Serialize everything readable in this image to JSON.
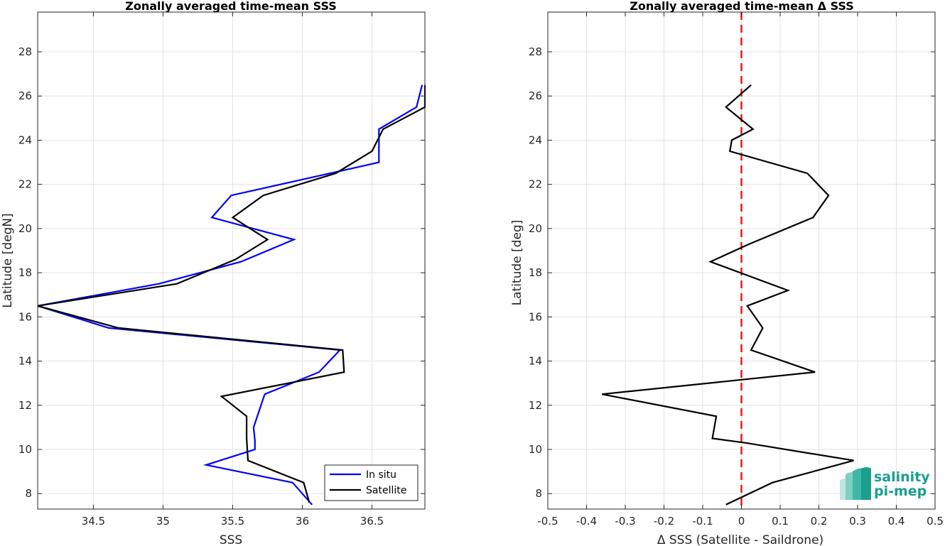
{
  "chart_data": [
    {
      "type": "line",
      "title": "Zonally averaged time-mean SSS",
      "xlabel": "SSS",
      "ylabel": "Latitude [degN]",
      "xlim": [
        34.1,
        36.88
      ],
      "ylim": [
        7.3,
        29.8
      ],
      "xticks": [
        34.5,
        35,
        35.5,
        36,
        36.5
      ],
      "xtick_labels": [
        "34.5",
        "35",
        "35.5",
        "36",
        "36.5"
      ],
      "yticks": [
        8,
        10,
        12,
        14,
        16,
        18,
        20,
        22,
        24,
        26,
        28
      ],
      "ytick_labels": [
        "8",
        "10",
        "12",
        "14",
        "16",
        "18",
        "20",
        "22",
        "24",
        "26",
        "28"
      ],
      "grid": true,
      "legend": "bottom-right",
      "series": [
        {
          "name": "In situ",
          "color": "#0000ff",
          "points": [
            [
              36.07,
              7.5
            ],
            [
              35.93,
              8.5
            ],
            [
              35.31,
              9.3
            ],
            [
              35.66,
              10
            ],
            [
              35.66,
              10.4
            ],
            [
              35.65,
              11
            ],
            [
              35.73,
              12.5
            ],
            [
              36.12,
              13.5
            ],
            [
              36.27,
              14.5
            ],
            [
              34.61,
              15.5
            ],
            [
              34.1,
              16.5
            ],
            [
              34.97,
              17.5
            ],
            [
              35.56,
              18.5
            ],
            [
              35.94,
              19.5
            ],
            [
              35.35,
              20.5
            ],
            [
              35.49,
              21.5
            ],
            [
              36.2,
              22.5
            ],
            [
              36.55,
              23
            ],
            [
              36.55,
              23.5
            ],
            [
              36.55,
              24.5
            ],
            [
              36.82,
              25.5
            ],
            [
              36.86,
              26.5
            ]
          ]
        },
        {
          "name": "Satellite",
          "color": "#000000",
          "points": [
            [
              36.05,
              7.6
            ],
            [
              36.01,
              8.5
            ],
            [
              35.61,
              9.5
            ],
            [
              35.6,
              10.5
            ],
            [
              35.6,
              11.5
            ],
            [
              35.42,
              12.4
            ],
            [
              36.3,
              13.5
            ],
            [
              36.29,
              14.5
            ],
            [
              34.68,
              15.5
            ],
            [
              34.1,
              16.5
            ],
            [
              35.1,
              17.5
            ],
            [
              35.52,
              18.6
            ],
            [
              35.75,
              19.5
            ],
            [
              35.5,
              20.5
            ],
            [
              35.72,
              21.5
            ],
            [
              36.24,
              22.5
            ],
            [
              36.5,
              23.5
            ],
            [
              36.58,
              24.5
            ],
            [
              36.88,
              25.5
            ],
            [
              36.88,
              26.5
            ]
          ]
        }
      ]
    },
    {
      "type": "line",
      "title": "Zonally averaged time-mean Δ SSS",
      "xlabel": "Δ SSS (Satellite - Saildrone)",
      "ylabel": "Latitude [deg]",
      "xlim": [
        -0.5,
        0.5
      ],
      "ylim": [
        7.3,
        29.8
      ],
      "xticks": [
        -0.5,
        -0.4,
        -0.3,
        -0.2,
        -0.1,
        0,
        0.1,
        0.2,
        0.3,
        0.4,
        0.5
      ],
      "xtick_labels": [
        "-0.5",
        "-0.4",
        "-0.3",
        "-0.2",
        "-0.1",
        "0",
        "0.1",
        "0.2",
        "0.3",
        "0.4",
        "0.5"
      ],
      "yticks": [
        8,
        10,
        12,
        14,
        16,
        18,
        20,
        22,
        24,
        26,
        28
      ],
      "ytick_labels": [
        "8",
        "10",
        "12",
        "14",
        "16",
        "18",
        "20",
        "22",
        "24",
        "26",
        "28"
      ],
      "grid": true,
      "reference_line": {
        "x": 0,
        "color": "#e8191b",
        "style": "dashed"
      },
      "series": [
        {
          "color": "#000000",
          "points": [
            [
              -0.04,
              7.5
            ],
            [
              0.08,
              8.5
            ],
            [
              0.29,
              9.5
            ],
            [
              0.01,
              10.3
            ],
            [
              -0.075,
              10.5
            ],
            [
              -0.065,
              11.5
            ],
            [
              -0.36,
              12.5
            ],
            [
              0.19,
              13.5
            ],
            [
              0.025,
              14.5
            ],
            [
              0.055,
              15.5
            ],
            [
              0.015,
              16.5
            ],
            [
              0.12,
              17.2
            ],
            [
              -0.08,
              18.5
            ],
            [
              0.02,
              19.3
            ],
            [
              0.185,
              20.5
            ],
            [
              0.225,
              21.5
            ],
            [
              0.17,
              22.5
            ],
            [
              -0.03,
              23.5
            ],
            [
              -0.025,
              24
            ],
            [
              0.03,
              24.5
            ],
            [
              -0.04,
              25.5
            ],
            [
              0.025,
              26.5
            ]
          ]
        }
      ]
    }
  ],
  "logo": {
    "line1": "salinity",
    "line2": "pi-mep",
    "color": "#1a9e8e"
  }
}
